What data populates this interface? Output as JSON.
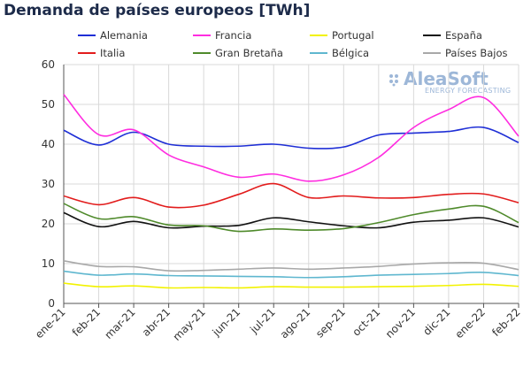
{
  "chart_data": {
    "type": "line",
    "title": "Demanda de países europeos [TWh]",
    "categories": [
      "ene-21",
      "feb-21",
      "mar-21",
      "abr-21",
      "may-21",
      "jun-21",
      "jul-21",
      "ago-21",
      "sep-21",
      "oct-21",
      "nov-21",
      "dic-21",
      "ene-22",
      "feb-22"
    ],
    "ylim": [
      0,
      60
    ],
    "yticks": [
      0,
      10,
      20,
      30,
      40,
      50,
      60
    ],
    "grid": true,
    "legend_position": "top",
    "series": [
      {
        "name": "Alemania",
        "color": "#1f2fd6",
        "values": [
          43.5,
          39.8,
          43.0,
          40.0,
          39.5,
          39.5,
          40.0,
          39.0,
          39.3,
          42.3,
          42.8,
          43.2,
          44.2,
          40.4
        ]
      },
      {
        "name": "Francia",
        "color": "#ff2de0",
        "values": [
          52.5,
          42.4,
          43.6,
          37.3,
          34.3,
          31.7,
          32.5,
          30.7,
          32.3,
          36.7,
          44.2,
          48.7,
          51.7,
          42.0
        ]
      },
      {
        "name": "Portugal",
        "color": "#f2f200",
        "values": [
          5.1,
          4.2,
          4.4,
          3.9,
          4.0,
          3.9,
          4.2,
          4.1,
          4.1,
          4.2,
          4.3,
          4.5,
          4.8,
          4.3
        ]
      },
      {
        "name": "España",
        "color": "#111111",
        "values": [
          22.8,
          19.3,
          20.6,
          19.0,
          19.4,
          19.6,
          21.5,
          20.5,
          19.5,
          19.0,
          20.4,
          20.9,
          21.5,
          19.2
        ]
      },
      {
        "name": "Italia",
        "color": "#e21c1c",
        "values": [
          27.0,
          24.8,
          26.6,
          24.2,
          24.7,
          27.4,
          30.1,
          26.6,
          27.0,
          26.5,
          26.6,
          27.4,
          27.5,
          25.3
        ]
      },
      {
        "name": "Gran Bretaña",
        "color": "#4f8a2b",
        "values": [
          25.1,
          21.3,
          21.8,
          19.7,
          19.5,
          18.1,
          18.7,
          18.4,
          18.8,
          20.3,
          22.3,
          23.7,
          24.4,
          20.3
        ]
      },
      {
        "name": "Bélgica",
        "color": "#5fb7cf",
        "values": [
          8.1,
          7.1,
          7.4,
          7.0,
          6.9,
          6.8,
          6.7,
          6.5,
          6.7,
          7.1,
          7.3,
          7.5,
          7.8,
          7.0
        ]
      },
      {
        "name": "Países Bajos",
        "color": "#a8a8a8",
        "values": [
          10.7,
          9.3,
          9.2,
          8.2,
          8.3,
          8.6,
          8.9,
          8.6,
          8.9,
          9.3,
          9.9,
          10.2,
          10.1,
          8.5
        ]
      }
    ]
  },
  "watermark": {
    "name": "AleaSoft",
    "subtitle": "ENERGY FORECASTING"
  }
}
